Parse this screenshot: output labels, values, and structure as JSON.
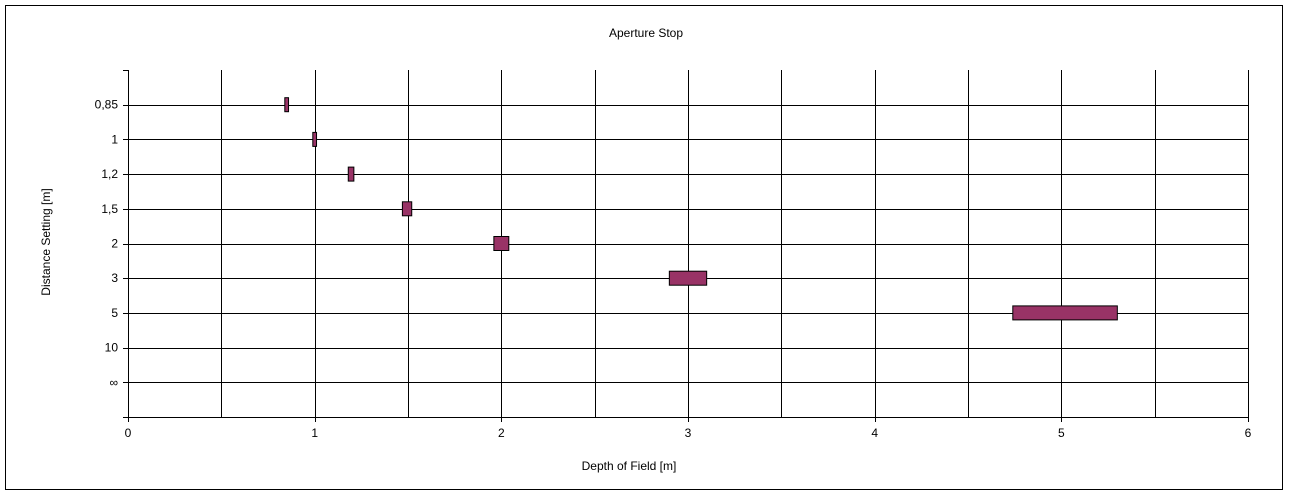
{
  "chart_data": {
    "type": "bar",
    "orientation": "horizontal-floating",
    "title": "Aperture Stop",
    "xlabel": "Depth of Field [m]",
    "ylabel": "Distance Setting [m]",
    "xlim": [
      0,
      6
    ],
    "x_ticks": [
      0,
      1,
      2,
      3,
      4,
      5,
      6
    ],
    "x_tick_labels": [
      "0",
      "1",
      "2",
      "3",
      "4",
      "5",
      "6"
    ],
    "categories": [
      "0,85",
      "1",
      "1,2",
      "1,5",
      "2",
      "3",
      "5",
      "10",
      "∞"
    ],
    "grid": true,
    "bar_color": "#993366",
    "ranges": [
      {
        "category": "0,85",
        "start": 0.84,
        "end": 0.86
      },
      {
        "category": "1",
        "start": 0.99,
        "end": 1.01
      },
      {
        "category": "1,2",
        "start": 1.18,
        "end": 1.21
      },
      {
        "category": "1,5",
        "start": 1.47,
        "end": 1.52
      },
      {
        "category": "2",
        "start": 1.96,
        "end": 2.04
      },
      {
        "category": "3",
        "start": 2.9,
        "end": 3.1
      },
      {
        "category": "5",
        "start": 4.74,
        "end": 5.3
      },
      {
        "category": "10",
        "start": null,
        "end": null
      },
      {
        "category": "∞",
        "start": null,
        "end": null
      }
    ]
  }
}
